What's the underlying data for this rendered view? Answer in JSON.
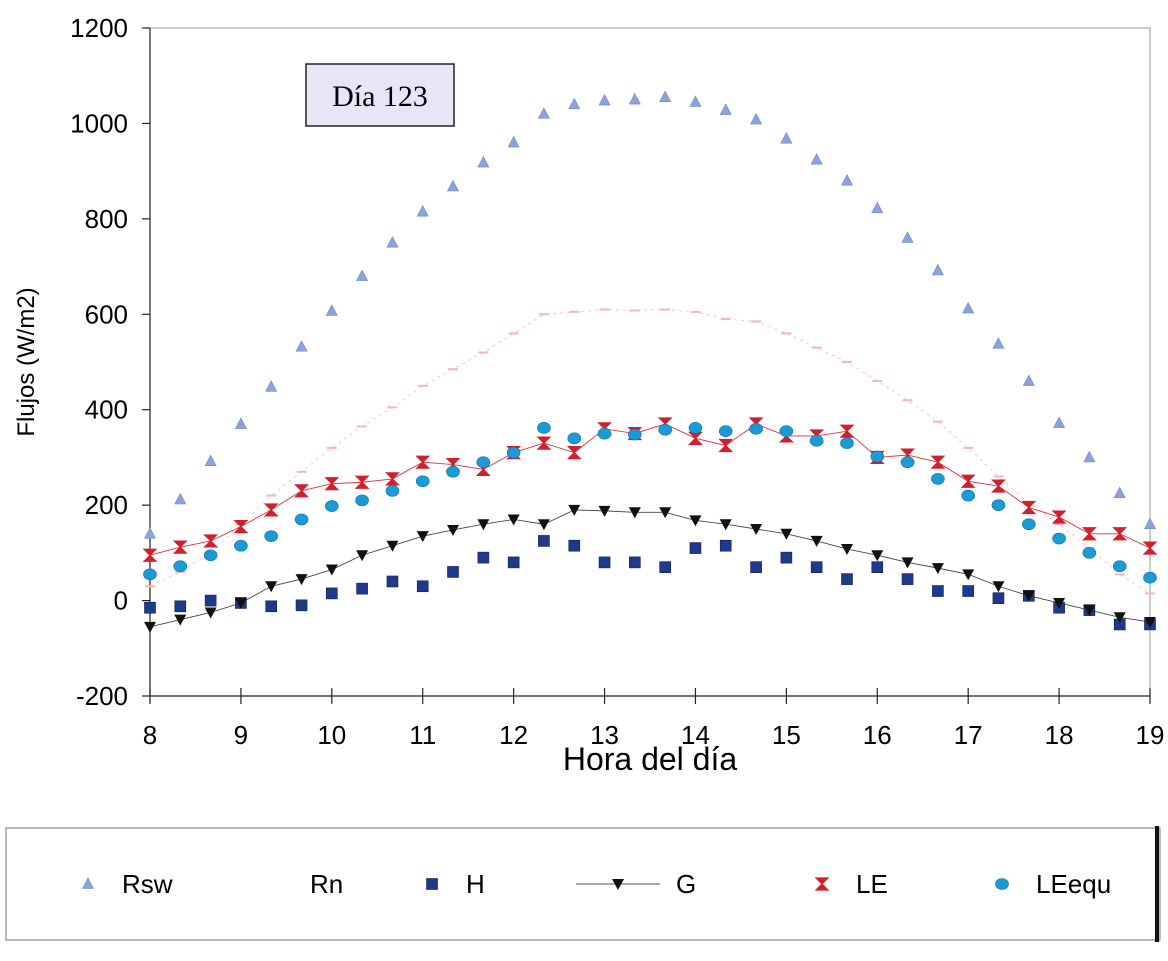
{
  "chart_data": {
    "type": "scatter",
    "title": "",
    "annotation": "Día 123",
    "xlabel": "Hora del día",
    "ylabel": "Flujos (W/m2)",
    "xlim": [
      8,
      19
    ],
    "ylim": [
      -200,
      1200
    ],
    "xticks": [
      "8",
      "9",
      "10",
      "11",
      "12",
      "13",
      "14",
      "15",
      "16",
      "17",
      "18",
      "19"
    ],
    "yticks": [
      "1200",
      "1000",
      "800",
      "600",
      "400",
      "200",
      "0",
      "-200"
    ],
    "grid": false,
    "legend_position": "bottom",
    "x": [
      8.0,
      8.333,
      8.667,
      9.0,
      9.333,
      9.667,
      10.0,
      10.333,
      10.667,
      11.0,
      11.333,
      11.667,
      12.0,
      12.333,
      12.667,
      13.0,
      13.333,
      13.667,
      14.0,
      14.333,
      14.667,
      15.0,
      15.333,
      15.667,
      16.0,
      16.333,
      16.667,
      17.0,
      17.333,
      17.667,
      18.0,
      18.333,
      18.667,
      19.0
    ],
    "series": [
      {
        "name": "Rsw",
        "marker": "triangle-up",
        "color": "#8da2dc",
        "line": false,
        "values": [
          140,
          212,
          292,
          370,
          448,
          532,
          607,
          680,
          750,
          815,
          868,
          918,
          960,
          1020,
          1040,
          1048,
          1050,
          1055,
          1045,
          1028,
          1008,
          968,
          924,
          880,
          822,
          760,
          692,
          612,
          538,
          460,
          372,
          300,
          225,
          160
        ]
      },
      {
        "name": "Rn",
        "marker": "dash",
        "color": "#f4b6bd",
        "line": true,
        "values": [
          30,
          60,
          100,
          160,
          220,
          270,
          320,
          365,
          405,
          450,
          485,
          520,
          560,
          600,
          605,
          610,
          608,
          610,
          605,
          590,
          585,
          560,
          530,
          500,
          460,
          420,
          375,
          320,
          260,
          205,
          160,
          110,
          55,
          15
        ]
      },
      {
        "name": "H",
        "marker": "square",
        "color": "#1f3a8a",
        "line": false,
        "values": [
          -15,
          -12,
          0,
          -5,
          -12,
          -10,
          15,
          25,
          40,
          30,
          60,
          90,
          80,
          125,
          115,
          80,
          80,
          70,
          110,
          115,
          70,
          90,
          70,
          45,
          70,
          45,
          20,
          20,
          5,
          10,
          -15,
          -20,
          -50,
          -50
        ]
      },
      {
        "name": "G",
        "marker": "triangle-down",
        "color": "#111111",
        "line": true,
        "values": [
          -55,
          -40,
          -25,
          -5,
          30,
          45,
          65,
          95,
          115,
          135,
          148,
          160,
          170,
          160,
          190,
          188,
          185,
          185,
          168,
          160,
          150,
          140,
          125,
          108,
          95,
          80,
          68,
          55,
          30,
          10,
          -5,
          -20,
          -35,
          -45
        ]
      },
      {
        "name": "LE",
        "marker": "hourglass",
        "color": "#d0202e",
        "line": true,
        "values": [
          95,
          112,
          125,
          155,
          190,
          230,
          245,
          248,
          255,
          290,
          285,
          275,
          310,
          330,
          310,
          360,
          350,
          370,
          340,
          325,
          370,
          345,
          345,
          355,
          300,
          305,
          290,
          250,
          240,
          195,
          175,
          140,
          140,
          110
        ]
      },
      {
        "name": "LEequ",
        "marker": "circle",
        "color": "#1a9ad6",
        "line": false,
        "values": [
          55,
          72,
          95,
          115,
          135,
          170,
          198,
          210,
          230,
          250,
          270,
          290,
          310,
          362,
          340,
          350,
          348,
          358,
          362,
          355,
          360,
          355,
          335,
          330,
          302,
          290,
          255,
          220,
          200,
          160,
          130,
          100,
          72,
          48
        ]
      }
    ]
  },
  "legend": {
    "items": [
      {
        "label": "Rsw"
      },
      {
        "label": "Rn"
      },
      {
        "label": "H"
      },
      {
        "label": "G"
      },
      {
        "label": "LE"
      },
      {
        "label": "LEequ"
      }
    ]
  }
}
